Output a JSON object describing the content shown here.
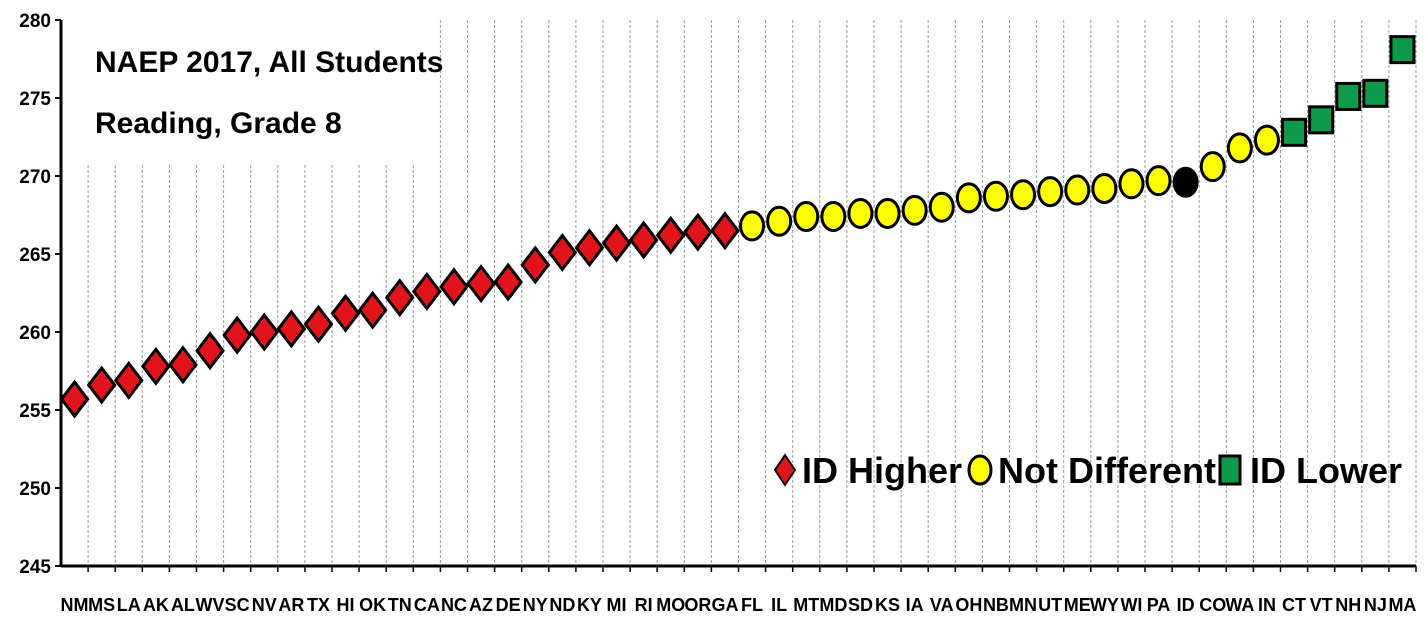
{
  "chart_data": {
    "type": "scatter",
    "title": "NAEP 2017, All Students",
    "subtitle": "Reading, Grade 8",
    "ylim": [
      245,
      280
    ],
    "yticks": [
      245,
      250,
      255,
      260,
      265,
      270,
      275,
      280
    ],
    "grid": "vertical dashed",
    "legend_position": "bottom-right",
    "categories": [
      "NM",
      "MS",
      "LA",
      "AK",
      "AL",
      "WV",
      "SC",
      "NV",
      "AR",
      "TX",
      "HI",
      "OK",
      "TN",
      "CA",
      "NC",
      "AZ",
      "DE",
      "NY",
      "ND",
      "KY",
      "MI",
      "RI",
      "MO",
      "OR",
      "GA",
      "FL",
      "IL",
      "MT",
      "MD",
      "SD",
      "KS",
      "IA",
      "VA",
      "OH",
      "NB",
      "MN",
      "UT",
      "ME",
      "WY",
      "WI",
      "PA",
      "ID",
      "CO",
      "WA",
      "IN",
      "CT",
      "VT",
      "NH",
      "NJ",
      "MA"
    ],
    "values": [
      255.7,
      256.6,
      256.9,
      257.8,
      257.9,
      258.8,
      259.8,
      260.0,
      260.2,
      260.5,
      261.2,
      261.4,
      262.2,
      262.6,
      262.9,
      263.1,
      263.2,
      264.3,
      265.1,
      265.4,
      265.7,
      265.9,
      266.2,
      266.4,
      266.5,
      266.8,
      267.1,
      267.4,
      267.4,
      267.6,
      267.6,
      267.8,
      268.0,
      268.6,
      268.7,
      268.8,
      269.0,
      269.1,
      269.2,
      269.5,
      269.7,
      269.6,
      270.6,
      271.8,
      272.3,
      272.8,
      273.6,
      275.1,
      275.3,
      278.1
    ],
    "groups": [
      "higher",
      "higher",
      "higher",
      "higher",
      "higher",
      "higher",
      "higher",
      "higher",
      "higher",
      "higher",
      "higher",
      "higher",
      "higher",
      "higher",
      "higher",
      "higher",
      "higher",
      "higher",
      "higher",
      "higher",
      "higher",
      "higher",
      "higher",
      "higher",
      "higher",
      "same",
      "same",
      "same",
      "same",
      "same",
      "same",
      "same",
      "same",
      "same",
      "same",
      "same",
      "same",
      "same",
      "same",
      "same",
      "same",
      "self",
      "same",
      "same",
      "same",
      "lower",
      "lower",
      "lower",
      "lower",
      "lower"
    ],
    "legend": [
      {
        "key": "higher",
        "label": "ID Higher",
        "shape": "diamond",
        "color": "#e0141a"
      },
      {
        "key": "same",
        "label": "Not Different",
        "shape": "circle",
        "color": "#ffff00"
      },
      {
        "key": "lower",
        "label": "ID Lower",
        "shape": "square",
        "color": "#0f9a4b"
      }
    ],
    "self_color": "#000000"
  }
}
